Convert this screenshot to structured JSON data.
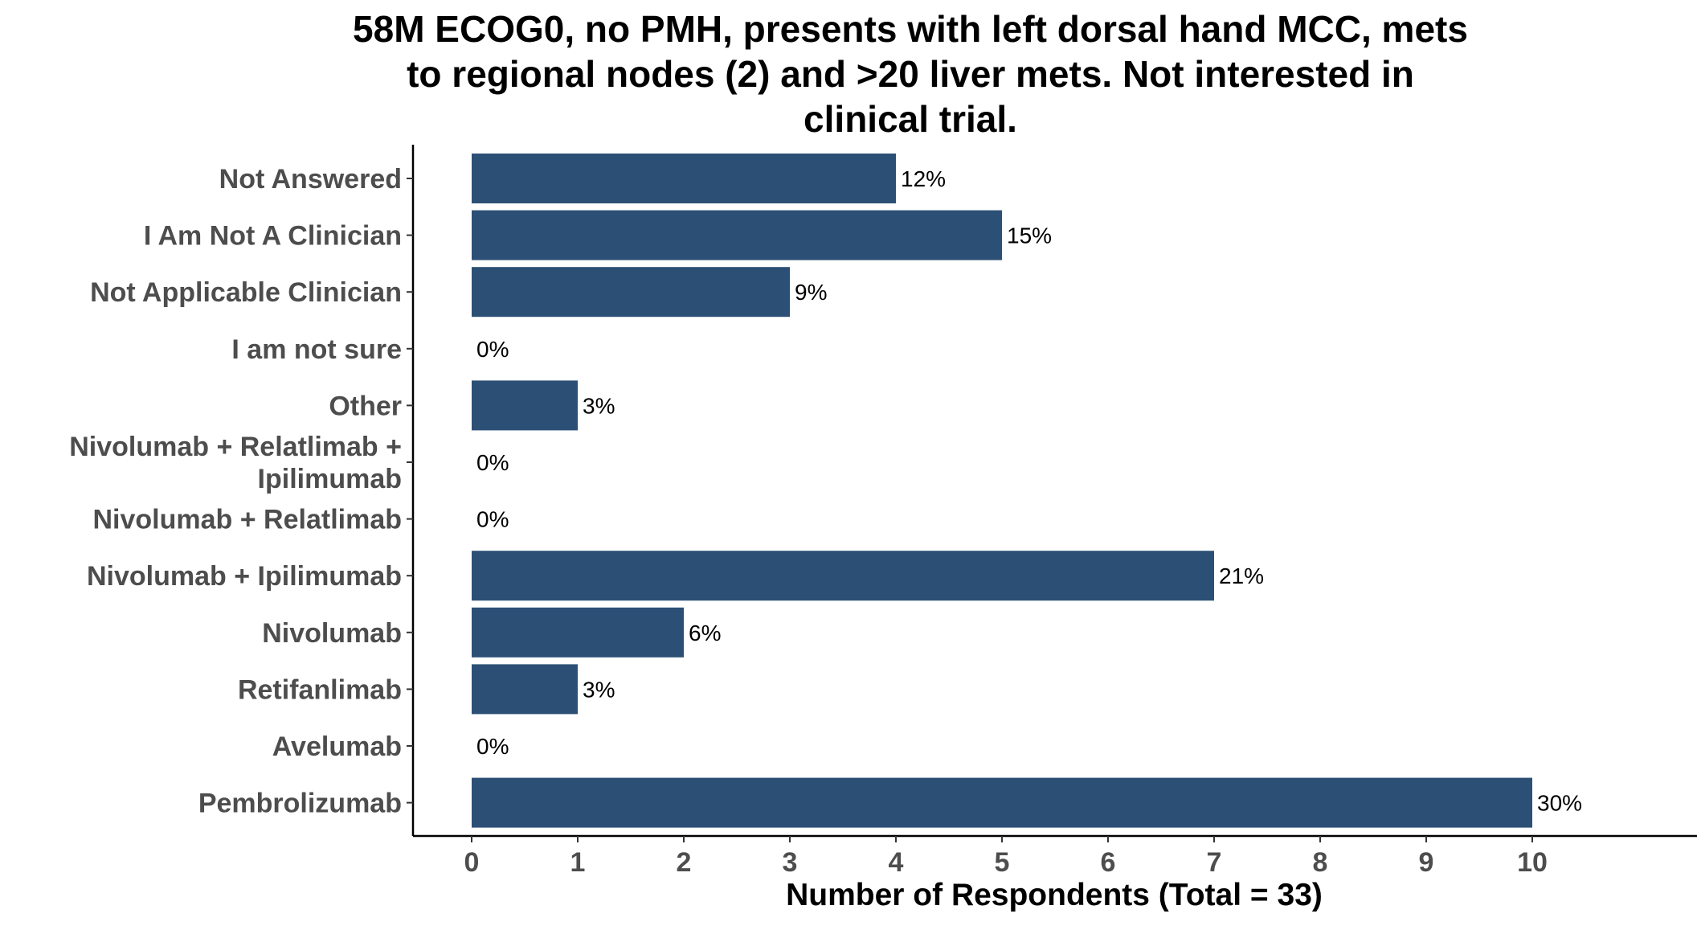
{
  "chart_data": {
    "type": "bar",
    "orientation": "horizontal",
    "title": "58M ECOG0, no PMH, presents with left dorsal hand MCC, mets to regional nodes (2) and >20 liver mets. Not interested in clinical trial.",
    "title_lines": [
      "58M ECOG0, no PMH, presents with left dorsal hand MCC, mets",
      "to regional nodes (2) and >20 liver mets. Not interested in",
      "clinical trial."
    ],
    "xlabel": "Number of Respondents (Total = 33)",
    "ylabel": "",
    "xlim": [
      0,
      10
    ],
    "x_ticks": [
      "0",
      "1",
      "2",
      "3",
      "4",
      "5",
      "6",
      "7",
      "8",
      "9",
      "10"
    ],
    "grid": false,
    "bar_color": "#2c5075",
    "categories": [
      {
        "label_lines": [
          "Not Answered"
        ],
        "value": 4,
        "label": "12%"
      },
      {
        "label_lines": [
          "I Am Not A Clinician"
        ],
        "value": 5,
        "label": "15%"
      },
      {
        "label_lines": [
          "Not Applicable Clinician"
        ],
        "value": 3,
        "label": "9%"
      },
      {
        "label_lines": [
          "I am not sure"
        ],
        "value": 0,
        "label": "0%"
      },
      {
        "label_lines": [
          "Other"
        ],
        "value": 1,
        "label": "3%"
      },
      {
        "label_lines": [
          "Nivolumab + Relatlimab +",
          "Ipilimumab"
        ],
        "value": 0,
        "label": "0%"
      },
      {
        "label_lines": [
          "Nivolumab + Relatlimab"
        ],
        "value": 0,
        "label": "0%"
      },
      {
        "label_lines": [
          "Nivolumab + Ipilimumab"
        ],
        "value": 7,
        "label": "21%"
      },
      {
        "label_lines": [
          "Nivolumab"
        ],
        "value": 2,
        "label": "6%"
      },
      {
        "label_lines": [
          "Retifanlimab"
        ],
        "value": 1,
        "label": "3%"
      },
      {
        "label_lines": [
          "Avelumab"
        ],
        "value": 0,
        "label": "0%"
      },
      {
        "label_lines": [
          "Pembrolizumab"
        ],
        "value": 10,
        "label": "30%"
      }
    ]
  }
}
